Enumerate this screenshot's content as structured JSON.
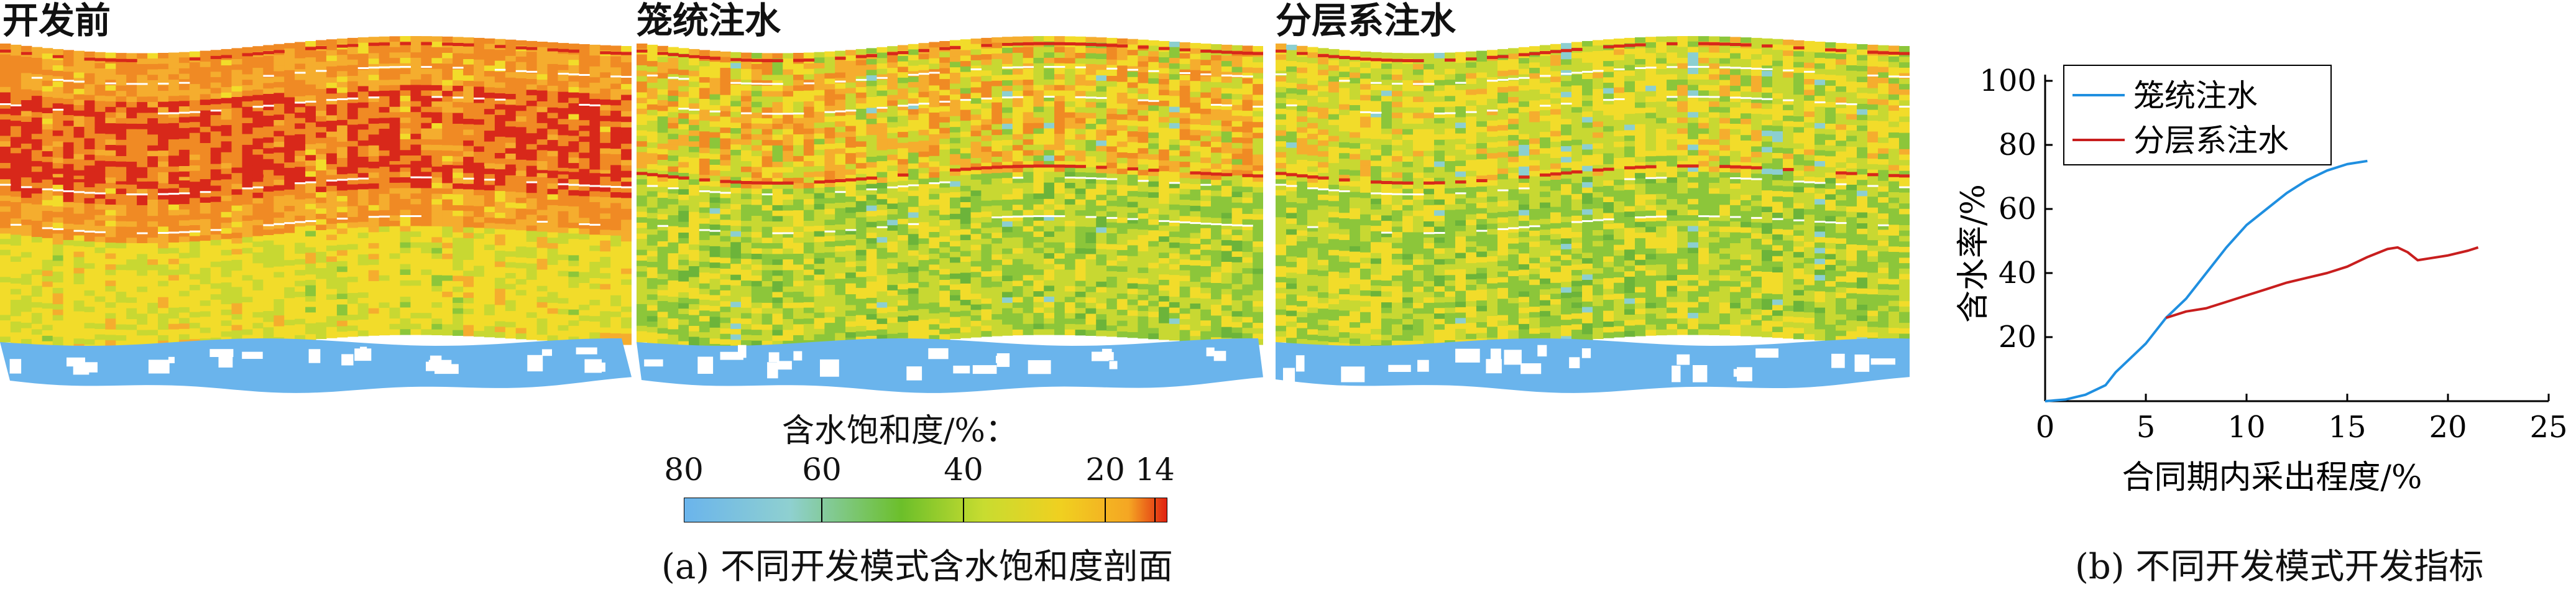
{
  "figure": {
    "panels": [
      {
        "title": "开发前",
        "mode": "before"
      },
      {
        "title": "笼统注水",
        "mode": "commingled"
      },
      {
        "title": "分层系注水",
        "mode": "layered"
      }
    ],
    "colorbar": {
      "title": "含水饱和度/%：",
      "ticks": [
        "80",
        "60",
        "40",
        "20",
        "14"
      ],
      "tick_values": [
        80,
        60,
        40,
        20,
        14
      ],
      "colors": [
        "#6ab4ec",
        "#8fd0d0",
        "#9acd32",
        "#e8e030",
        "#f5a623",
        "#e03010"
      ]
    },
    "caption_a": "(a) 不同开发模式含水饱和度剖面",
    "caption_b": "(b) 不同开发模式开发指标"
  },
  "chart_data": {
    "type": "line",
    "xlabel": "合同期内采出程度/%",
    "ylabel": "含水率/%",
    "xlim": [
      0,
      25
    ],
    "ylim": [
      0,
      100
    ],
    "xticks": [
      "0",
      "5",
      "10",
      "15",
      "20",
      "25"
    ],
    "yticks": [
      "20",
      "40",
      "60",
      "80",
      "100"
    ],
    "legend_position": "top-left",
    "series": [
      {
        "name": "笼统注水",
        "color": "#1f8fe0",
        "points": [
          [
            0,
            0
          ],
          [
            1,
            0.5
          ],
          [
            2,
            2
          ],
          [
            3,
            5
          ],
          [
            3.5,
            9
          ],
          [
            4,
            12
          ],
          [
            4.5,
            15
          ],
          [
            5,
            18
          ],
          [
            5.5,
            22
          ],
          [
            6,
            26
          ],
          [
            7,
            32
          ],
          [
            8,
            40
          ],
          [
            9,
            48
          ],
          [
            10,
            55
          ],
          [
            11,
            60
          ],
          [
            12,
            65
          ],
          [
            13,
            69
          ],
          [
            14,
            72
          ],
          [
            15,
            74
          ],
          [
            16,
            75
          ]
        ]
      },
      {
        "name": "分层系注水",
        "color": "#c81e1e",
        "points": [
          [
            6,
            26
          ],
          [
            7,
            28
          ],
          [
            8,
            29
          ],
          [
            9,
            31
          ],
          [
            10,
            33
          ],
          [
            11,
            35
          ],
          [
            12,
            37
          ],
          [
            13,
            38.5
          ],
          [
            14,
            40
          ],
          [
            15,
            42
          ],
          [
            16,
            45
          ],
          [
            17,
            47.5
          ],
          [
            17.5,
            48
          ],
          [
            18,
            46.5
          ],
          [
            18.5,
            44
          ],
          [
            19,
            44.5
          ],
          [
            20,
            45.5
          ],
          [
            21,
            47
          ],
          [
            21.5,
            48
          ]
        ]
      }
    ]
  }
}
